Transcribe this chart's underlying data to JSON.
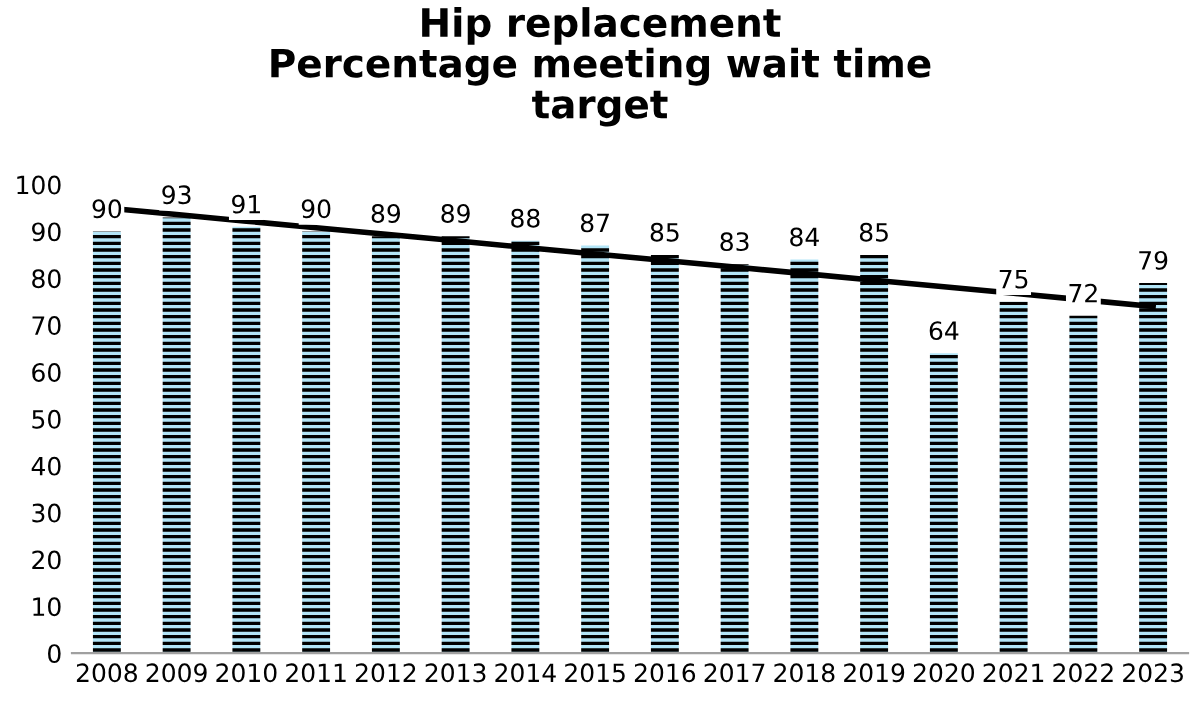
{
  "chart_data": {
    "type": "bar",
    "title": "Hip replacement\nPercentage meeting wait time\ntarget",
    "categories": [
      "2008",
      "2009",
      "2010",
      "2011",
      "2012",
      "2013",
      "2014",
      "2015",
      "2016",
      "2017",
      "2018",
      "2019",
      "2020",
      "2021",
      "2022",
      "2023"
    ],
    "series": [
      {
        "color": "#b3e5f7",
        "values": [
          90,
          93,
          91,
          90,
          89,
          89,
          88,
          87,
          85,
          83,
          84,
          85,
          64,
          75,
          72,
          79
        ],
        "value_labels": [
          "90",
          "93",
          "91",
          "90",
          "89",
          "89",
          "88",
          "87",
          "85",
          "83",
          "84",
          "85",
          "64",
          "75",
          "72",
          "79"
        ]
      },
      {
        "type": "line",
        "color": "#000000",
        "values": [
          95,
          93.6,
          92.2,
          90.8,
          89.4,
          88,
          86.6,
          85.2,
          83.8,
          82.4,
          81,
          79.6,
          78.2,
          76.8,
          75.4,
          74
        ]
      }
    ],
    "ylim": [
      0,
      100
    ],
    "yticks": [
      0,
      10,
      20,
      30,
      40,
      50,
      60,
      70,
      80,
      90,
      100
    ],
    "grid": false,
    "legend": false
  }
}
